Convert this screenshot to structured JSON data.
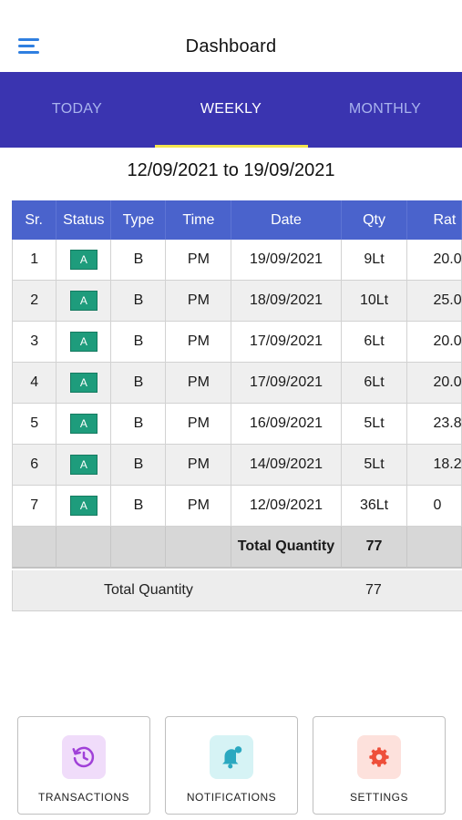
{
  "header": {
    "title": "Dashboard"
  },
  "tabs": [
    {
      "label": "TODAY",
      "active": false
    },
    {
      "label": "WEEKLY",
      "active": true
    },
    {
      "label": "MONTHLY",
      "active": false
    }
  ],
  "date_range": "12/09/2021 to 19/09/2021",
  "table": {
    "columns": [
      "Sr.",
      "Status",
      "Type",
      "Time",
      "Date",
      "Qty",
      "Rat"
    ],
    "rows": [
      {
        "sr": "1",
        "status": "A",
        "type": "B",
        "time": "PM",
        "date": "19/09/2021",
        "qty": "9Lt",
        "rate": "20.0"
      },
      {
        "sr": "2",
        "status": "A",
        "type": "B",
        "time": "PM",
        "date": "18/09/2021",
        "qty": "10Lt",
        "rate": "25.0"
      },
      {
        "sr": "3",
        "status": "A",
        "type": "B",
        "time": "PM",
        "date": "17/09/2021",
        "qty": "6Lt",
        "rate": "20.0"
      },
      {
        "sr": "4",
        "status": "A",
        "type": "B",
        "time": "PM",
        "date": "17/09/2021",
        "qty": "6Lt",
        "rate": "20.0"
      },
      {
        "sr": "5",
        "status": "A",
        "type": "B",
        "time": "PM",
        "date": "16/09/2021",
        "qty": "5Lt",
        "rate": "23.8"
      },
      {
        "sr": "6",
        "status": "A",
        "type": "B",
        "time": "PM",
        "date": "14/09/2021",
        "qty": "5Lt",
        "rate": "18.2"
      },
      {
        "sr": "7",
        "status": "A",
        "type": "B",
        "time": "PM",
        "date": "12/09/2021",
        "qty": "36Lt",
        "rate": "0"
      }
    ],
    "summary": {
      "label": "Total Quantity",
      "value": "77"
    }
  },
  "total": {
    "label": "Total Quantity",
    "value": "77"
  },
  "cards": [
    {
      "label": "TRANSACTIONS",
      "icon": "history-icon",
      "bg": "#f0dcfa",
      "color": "#a040d8"
    },
    {
      "label": "NOTIFICATIONS",
      "icon": "bell-icon",
      "bg": "#d6f3f5",
      "color": "#2aa8c0"
    },
    {
      "label": "SETTINGS",
      "icon": "gear-icon",
      "bg": "#fde1dc",
      "color": "#ee4f3a"
    }
  ],
  "colors": {
    "tab_bar": "#3a34b0",
    "tab_indicator": "#f4e44f",
    "table_header": "#4a63cc",
    "status_badge": "#1e9c7c",
    "menu_icon": "#2f7fe0"
  }
}
